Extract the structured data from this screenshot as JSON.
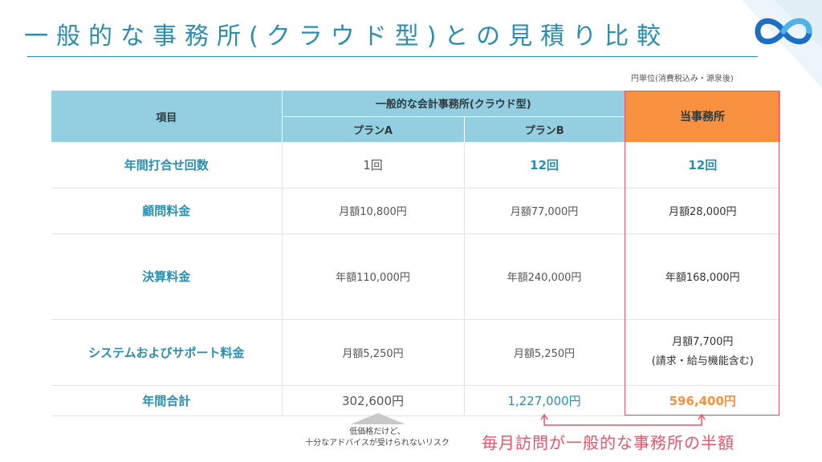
{
  "title": "一般的な事務所(クラウド型)との見積り比較",
  "unit_note": "円単位(消費税込み・源泉後)",
  "table": {
    "header": {
      "item": "項目",
      "group": "一般的な会計事務所(クラウド型)",
      "plan_a": "プランA",
      "plan_b": "プランB",
      "ours": "当事務所"
    },
    "rows": [
      {
        "label": "年間打合せ回数",
        "plan_a": "1回",
        "plan_b": "12回",
        "ours": "12回"
      },
      {
        "label": "顧問料金",
        "plan_a": "月額10,800円",
        "plan_b": "月額77,000円",
        "ours": "月額28,000円"
      },
      {
        "label": "決算料金",
        "plan_a": "年額110,000円",
        "plan_b": "年額240,000円",
        "ours": "年額168,000円"
      },
      {
        "label": "システムおよびサポート料金",
        "plan_a": "月額5,250円",
        "plan_b": "月額5,250円",
        "ours_line1": "月額7,700円",
        "ours_line2": "(請求・給与機能含む)"
      },
      {
        "label": "年間合計",
        "plan_a": "302,600円",
        "plan_b": "1,227,000円",
        "ours": "596,400円"
      }
    ]
  },
  "risk_note": {
    "line1": "低価格だけど、",
    "line2": "十分なアドバイスが受けられないリスク"
  },
  "callout": "毎月訪問が一般的な事務所の半額",
  "colors": {
    "header_blue": "#93cfe0",
    "accent_blue": "#2a8fb0",
    "accent_orange": "#f7913f",
    "highlight_pink": "#e9546b"
  }
}
